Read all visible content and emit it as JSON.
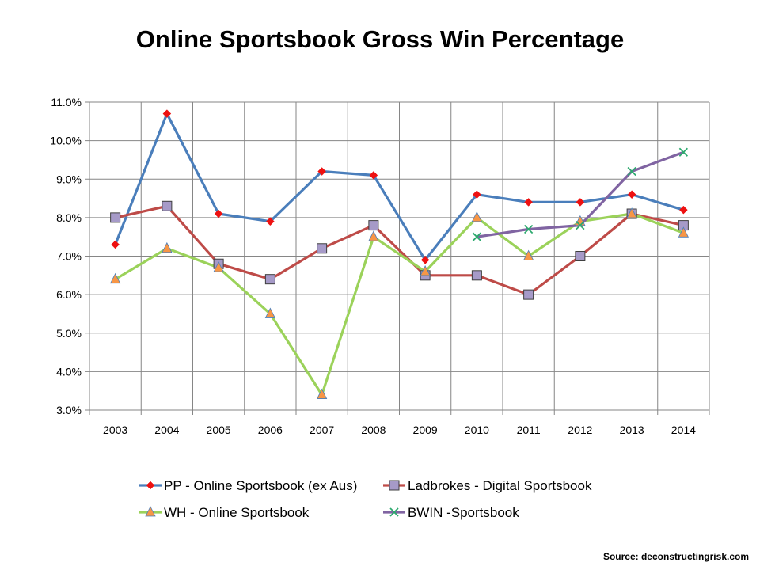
{
  "chart_data": {
    "type": "line",
    "title": "Online Sportsbook Gross Win Percentage",
    "categories": [
      "2003",
      "2004",
      "2005",
      "2006",
      "2007",
      "2008",
      "2009",
      "2010",
      "2011",
      "2012",
      "2013",
      "2014"
    ],
    "ylim": [
      3.0,
      11.0
    ],
    "ytick_labels": [
      "3.0%",
      "4.0%",
      "5.0%",
      "6.0%",
      "7.0%",
      "8.0%",
      "9.0%",
      "10.0%",
      "11.0%"
    ],
    "grid": true,
    "legend_position": "bottom",
    "series": [
      {
        "name": "PP - Online Sportsbook (ex Aus)",
        "line_color": "#4A7EBB",
        "marker": "diamond",
        "marker_color": "#EE1111",
        "values": [
          7.3,
          10.7,
          8.1,
          7.9,
          9.2,
          9.1,
          6.9,
          8.6,
          8.4,
          8.4,
          8.6,
          8.2
        ]
      },
      {
        "name": "Ladbrokes - Digital Sportsbook",
        "line_color": "#BE4B48",
        "marker": "square",
        "marker_color": "#A69AC8",
        "values": [
          8.0,
          8.3,
          6.8,
          6.4,
          7.2,
          7.8,
          6.5,
          6.5,
          6.0,
          7.0,
          8.1,
          7.8
        ]
      },
      {
        "name": "WH - Online Sportsbook",
        "line_color": "#9BD25A",
        "marker": "triangle",
        "marker_color": "#F79646",
        "values": [
          6.4,
          7.2,
          6.7,
          5.5,
          3.4,
          7.5,
          6.6,
          8.0,
          7.0,
          7.9,
          8.1,
          7.6
        ]
      },
      {
        "name": "BWIN -Sportsbook",
        "line_color": "#8064A2",
        "marker": "x",
        "marker_color": "#2DAA6E",
        "values": [
          null,
          null,
          null,
          null,
          null,
          null,
          null,
          7.5,
          7.7,
          7.8,
          9.2,
          9.7
        ]
      }
    ]
  },
  "source": "Source:  deconstructingrisk.com"
}
